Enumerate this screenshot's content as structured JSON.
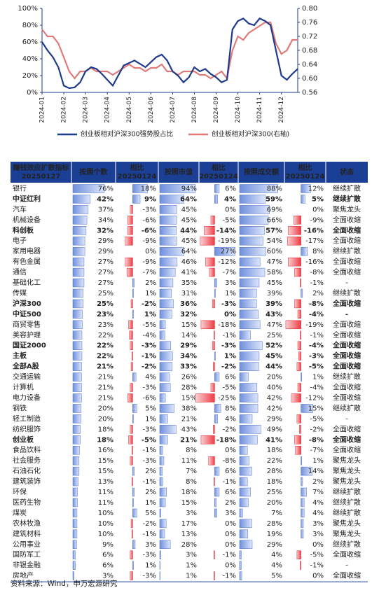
{
  "chart_data": {
    "type": "line",
    "x": [
      "2024-01",
      null,
      null,
      null,
      "2024-02",
      null,
      null,
      null,
      "2024-03",
      null,
      null,
      null,
      "2024-04",
      null,
      null,
      null,
      "2024-05",
      null,
      null,
      null,
      "2024-06",
      null,
      null,
      null,
      "2024-07",
      null,
      null,
      null,
      "2024-08",
      null,
      null,
      null,
      "2024-09",
      null,
      null,
      null,
      "2024-10",
      null,
      null,
      null,
      "2024-11",
      null,
      null,
      null,
      "2024-12",
      null,
      null,
      null
    ],
    "series": [
      {
        "name": "创业板相对沪深300强势股占比",
        "color": "#1f3a8a",
        "values": [
          60,
          50,
          42,
          30,
          8,
          5,
          6,
          12,
          25,
          30,
          28,
          22,
          15,
          8,
          20,
          32,
          35,
          38,
          34,
          30,
          36,
          42,
          45,
          38,
          25,
          20,
          12,
          18,
          30,
          25,
          28,
          22,
          18,
          12,
          15,
          75,
          85,
          88,
          82,
          80,
          88,
          85,
          80,
          50,
          20,
          15,
          22,
          28
        ]
      },
      {
        "name": "创业板相对沪深300(右轴)",
        "color": "#e07a7a",
        "axis": "y2",
        "values": [
          0.74,
          0.72,
          0.72,
          0.7,
          0.66,
          0.62,
          0.6,
          0.62,
          0.62,
          0.63,
          0.62,
          0.62,
          0.62,
          0.61,
          0.62,
          0.63,
          0.64,
          0.63,
          0.63,
          0.62,
          0.63,
          0.63,
          0.64,
          0.62,
          0.62,
          0.61,
          0.62,
          0.62,
          0.62,
          0.61,
          0.61,
          0.6,
          0.61,
          0.62,
          0.6,
          0.68,
          0.72,
          0.71,
          0.73,
          0.74,
          0.75,
          0.76,
          0.76,
          0.7,
          0.67,
          0.68,
          0.71,
          0.71
        ]
      }
    ],
    "ylim": [
      0,
      100
    ],
    "yticks": [
      {
        "value": 0,
        "label": "0%"
      },
      {
        "value": 20,
        "label": "20%"
      },
      {
        "value": 40,
        "label": "40%"
      },
      {
        "value": 60,
        "label": "60%"
      },
      {
        "value": 80,
        "label": "80%"
      },
      {
        "value": 100,
        "label": "100%"
      }
    ],
    "y2lim": [
      0.56,
      0.8
    ],
    "y2ticks": [
      0.56,
      {
        "value": 0.6,
        "label": "0.60"
      },
      0.64,
      0.68,
      0.72,
      0.76,
      {
        "value": 0.8,
        "label": "0.80"
      }
    ],
    "grid": false,
    "legend": "bottom"
  },
  "table": {
    "header": [
      [
        "赚钱效应扩散指标",
        "20250127"
      ],
      [
        "按照个数"
      ],
      [
        "相比",
        "20250124"
      ],
      [
        "按照市值"
      ],
      [
        "相比",
        "20250124"
      ],
      [
        "按照成交额"
      ],
      [
        "相比",
        "20250124"
      ],
      [
        "状态"
      ]
    ],
    "rows": [
      {
        "cells": [
          "银行",
          "76%",
          "18%",
          "94%",
          "6%",
          "88%",
          "12%",
          "继续扩散"
        ],
        "bold": false
      },
      {
        "cells": [
          "中证红利",
          "42%",
          "9%",
          "64%",
          "4%",
          "59%",
          "5%",
          "继续扩散"
        ],
        "bold": true
      },
      {
        "cells": [
          "汽车",
          "37%",
          "-3%",
          "45%",
          "0%",
          "69%",
          "0%",
          "聚焦龙头"
        ],
        "bold": false
      },
      {
        "cells": [
          "机械设备",
          "34%",
          "-6%",
          "45%",
          "-5%",
          "66%",
          "-9%",
          "全面收缩"
        ],
        "bold": false
      },
      {
        "cells": [
          "科创板",
          "32%",
          "-6%",
          "44%",
          "-14%",
          "57%",
          "-16%",
          "全面收缩"
        ],
        "bold": true
      },
      {
        "cells": [
          "电子",
          "29%",
          "-9%",
          "45%",
          "-19%",
          "54%",
          "-17%",
          "全面收缩"
        ],
        "bold": false
      },
      {
        "cells": [
          "家用电器",
          "29%",
          "0%",
          "64%",
          "27%",
          "60%",
          "8%",
          "继续扩散"
        ],
        "bold": false
      },
      {
        "cells": [
          "有色金属",
          "27%",
          "-9%",
          "46%",
          "-12%",
          "47%",
          "-16%",
          "全面收缩"
        ],
        "bold": false
      },
      {
        "cells": [
          "通信",
          "27%",
          "-7%",
          "41%",
          "-7%",
          "58%",
          "-8%",
          "全面收缩"
        ],
        "bold": false
      },
      {
        "cells": [
          "基础化工",
          "27%",
          "2%",
          "35%",
          "3%",
          "45%",
          "-1%",
          "-"
        ],
        "bold": false
      },
      {
        "cells": [
          "传媒",
          "25%",
          "1%",
          "31%",
          "1%",
          "39%",
          "2%",
          "继续扩散"
        ],
        "bold": false
      },
      {
        "cells": [
          "沪深300",
          "25%",
          "-2%",
          "36%",
          "-3%",
          "39%",
          "-8%",
          "全面收缩"
        ],
        "bold": true
      },
      {
        "cells": [
          "中证500",
          "23%",
          "1%",
          "32%",
          "0%",
          "43%",
          "-4%",
          "-"
        ],
        "bold": true
      },
      {
        "cells": [
          "商贸零售",
          "23%",
          "-5%",
          "15%",
          "-18%",
          "47%",
          "-19%",
          "全面收缩"
        ],
        "bold": false
      },
      {
        "cells": [
          "美容护理",
          "22%",
          "-4%",
          "14%",
          "-1%",
          "25%",
          "-1%",
          "全面收缩"
        ],
        "bold": false
      },
      {
        "cells": [
          "国证2000",
          "22%",
          "-3%",
          "29%",
          "-3%",
          "52%",
          "-4%",
          "全面收缩"
        ],
        "bold": true
      },
      {
        "cells": [
          "主板",
          "22%",
          "-1%",
          "34%",
          "1%",
          "45%",
          "-3%",
          "全面收缩"
        ],
        "bold": true
      },
      {
        "cells": [
          "全部A股",
          "21%",
          "-2%",
          "33%",
          "-2%",
          "44%",
          "-5%",
          "全面收缩"
        ],
        "bold": true
      },
      {
        "cells": [
          "交通运输",
          "21%",
          "4%",
          "26%",
          "6%",
          "20%",
          "1%",
          "继续扩散"
        ],
        "bold": false
      },
      {
        "cells": [
          "计算机",
          "21%",
          "-3%",
          "28%",
          "-5%",
          "40%",
          "-4%",
          "全面收缩"
        ],
        "bold": false
      },
      {
        "cells": [
          "电力设备",
          "21%",
          "-6%",
          "15%",
          "-25%",
          "42%",
          "-12%",
          "全面收缩"
        ],
        "bold": false
      },
      {
        "cells": [
          "钢铁",
          "20%",
          "5%",
          "38%",
          "8%",
          "42%",
          "15%",
          "继续扩散"
        ],
        "bold": false
      },
      {
        "cells": [
          "轻工制造",
          "20%",
          "1%",
          "21%",
          "4%",
          "29%",
          "-5%",
          "-"
        ],
        "bold": false
      },
      {
        "cells": [
          "纺织服饰",
          "18%",
          "-3%",
          "43%",
          "-2%",
          "49%",
          "-2%",
          "全面收缩"
        ],
        "bold": false
      },
      {
        "cells": [
          "创业板",
          "18%",
          "-5%",
          "21%",
          "-18%",
          "41%",
          "-8%",
          "全面收缩"
        ],
        "bold": true
      },
      {
        "cells": [
          "食品饮料",
          "16%",
          "-1%",
          "8%",
          "0%",
          "18%",
          "-7%",
          "全面收缩"
        ],
        "bold": false
      },
      {
        "cells": [
          "社会服务",
          "15%",
          "-3%",
          "11%",
          "-8%",
          "22%",
          "1%",
          "聚焦龙头"
        ],
        "bold": false
      },
      {
        "cells": [
          "石油石化",
          "15%",
          "2%",
          "7%",
          "6%",
          "28%",
          "14%",
          "聚焦龙头"
        ],
        "bold": false
      },
      {
        "cells": [
          "建筑装饰",
          "13%",
          "-1%",
          "8%",
          "-1%",
          "18%",
          "2%",
          "聚焦龙头"
        ],
        "bold": false
      },
      {
        "cells": [
          "环保",
          "11%",
          "2%",
          "18%",
          "6%",
          "25%",
          "7%",
          "继续扩散"
        ],
        "bold": false
      },
      {
        "cells": [
          "医药生物",
          "11%",
          "1%",
          "15%",
          "2%",
          "20%",
          "4%",
          "继续扩散"
        ],
        "bold": false
      },
      {
        "cells": [
          "煤炭",
          "10%",
          "5%",
          "3%",
          "3%",
          "7%",
          "4%",
          "继续扩散"
        ],
        "bold": false
      },
      {
        "cells": [
          "农林牧渔",
          "10%",
          "-2%",
          "17%",
          "0%",
          "28%",
          "3%",
          "聚焦龙头"
        ],
        "bold": false
      },
      {
        "cells": [
          "建筑材料",
          "10%",
          "-1%",
          "13%",
          "0%",
          "19%",
          "3%",
          "聚焦龙头"
        ],
        "bold": false
      },
      {
        "cells": [
          "公用事业",
          "9%",
          "3%",
          "28%",
          "0%",
          "29%",
          "0%",
          "继续扩散"
        ],
        "bold": false
      },
      {
        "cells": [
          "国防军工",
          "6%",
          "-3%",
          "3%",
          "-1%",
          "4%",
          "-5%",
          "全面收缩"
        ],
        "bold": false
      },
      {
        "cells": [
          "非银金融",
          "6%",
          "1%",
          "1%",
          "0%",
          "4%",
          "-1%",
          "-"
        ],
        "bold": false
      },
      {
        "cells": [
          "房地产",
          "3%",
          "-3%",
          "1%",
          "-1%",
          "5%",
          "0%",
          "全面收缩"
        ],
        "bold": false
      }
    ]
  },
  "source": "资料来源：Wind，申万宏源研究"
}
